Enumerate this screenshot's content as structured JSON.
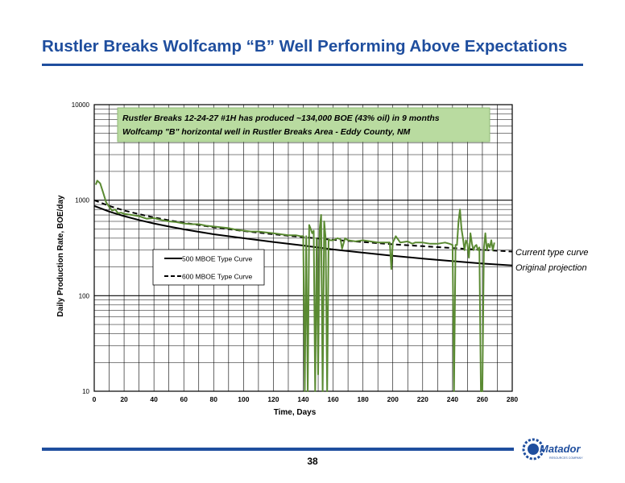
{
  "slide": {
    "title": "Rustler Breaks Wolfcamp “B” Well Performing Above Expectations",
    "page_number": "38",
    "logo_text": "Matador",
    "logo_subtext": "RESOURCES COMPANY"
  },
  "colors": {
    "brand_blue": "#1f4e9e",
    "actual_line": "#5a8a32",
    "callout_fill": "#b9dba0",
    "grid": "#000000"
  },
  "chart_data": {
    "type": "line",
    "ylabel": "Daily Production Rate, BOE/day",
    "xlabel": "Time, Days",
    "yscale": "log",
    "xlim": [
      0,
      280
    ],
    "ylim": [
      10,
      10000
    ],
    "x_ticks": [
      "0",
      "20",
      "40",
      "60",
      "80",
      "100",
      "120",
      "140",
      "160",
      "180",
      "200",
      "220",
      "240",
      "260",
      "280"
    ],
    "y_ticks": [
      "10",
      "100",
      "1000",
      "10000"
    ],
    "grid": true,
    "callout": {
      "line1": "Rustler Breaks 12-24-27 #1H has produced ~134,000 BOE (43% oil) in 9 months",
      "line2": "Wolfcamp \"B\" horizontal well in Rustler Breaks Area - Eddy County, NM"
    },
    "legend": [
      {
        "label": "500 MBOE Type Curve",
        "style": "solid"
      },
      {
        "label": "600 MBOE Type Curve",
        "style": "dashed"
      }
    ],
    "annotations": [
      {
        "text": "Current type curve"
      },
      {
        "text": "Original projection"
      }
    ],
    "series": [
      {
        "name": "500 MBOE Type Curve",
        "style": "solid",
        "x": [
          0,
          10,
          20,
          30,
          40,
          50,
          60,
          80,
          100,
          120,
          140,
          160,
          180,
          200,
          220,
          240,
          260,
          280
        ],
        "y": [
          870,
          760,
          680,
          620,
          570,
          530,
          495,
          440,
          400,
          365,
          335,
          305,
          282,
          262,
          245,
          230,
          217,
          207
        ]
      },
      {
        "name": "600 MBOE Type Curve",
        "style": "dashed",
        "x": [
          0,
          10,
          20,
          30,
          40,
          50,
          60,
          80,
          100,
          120,
          140,
          160,
          180,
          200,
          220,
          240,
          260,
          280
        ],
        "y": [
          1000,
          870,
          780,
          715,
          660,
          615,
          580,
          520,
          475,
          440,
          410,
          385,
          365,
          345,
          330,
          315,
          302,
          290
        ]
      },
      {
        "name": "",
        "style": "actual",
        "x": [
          1,
          2,
          3,
          4,
          6,
          8,
          10,
          12,
          14,
          16,
          18,
          20,
          25,
          30,
          35,
          40,
          45,
          50,
          55,
          60,
          65,
          70,
          75,
          80,
          85,
          90,
          95,
          100,
          105,
          110,
          115,
          120,
          125,
          130,
          135,
          138,
          140,
          141,
          142,
          143,
          144,
          145,
          146,
          147,
          148,
          149,
          150,
          151,
          152,
          153,
          154,
          155,
          156,
          157,
          158,
          160,
          163,
          165,
          166,
          168,
          170,
          175,
          180,
          185,
          190,
          195,
          198,
          199,
          200,
          202,
          205,
          210,
          213,
          215,
          220,
          225,
          230,
          235,
          238,
          240,
          241,
          242,
          243,
          244,
          245,
          246,
          247,
          248,
          249,
          250,
          251,
          252,
          253,
          254,
          255,
          256,
          257,
          258,
          259,
          260,
          261,
          262,
          263,
          264,
          265,
          266,
          267,
          268
        ],
        "y": [
          1450,
          1600,
          1550,
          1500,
          1200,
          950,
          850,
          780,
          800,
          730,
          740,
          720,
          700,
          680,
          640,
          650,
          620,
          600,
          590,
          570,
          560,
          560,
          540,
          530,
          520,
          510,
          490,
          480,
          470,
          470,
          460,
          450,
          440,
          430,
          430,
          420,
          420,
          10,
          420,
          10,
          550,
          500,
          450,
          480,
          10,
          400,
          15,
          500,
          700,
          10,
          600,
          400,
          10,
          390,
          380,
          380,
          400,
          390,
          310,
          400,
          380,
          370,
          380,
          370,
          360,
          360,
          360,
          190,
          360,
          420,
          360,
          370,
          350,
          360,
          360,
          350,
          350,
          360,
          350,
          340,
          10,
          340,
          340,
          600,
          800,
          500,
          400,
          300,
          380,
          350,
          250,
          450,
          350,
          300,
          330,
          340,
          300,
          320,
          10,
          10,
          310,
          450,
          300,
          350,
          320,
          380,
          300,
          360
        ]
      }
    ]
  }
}
